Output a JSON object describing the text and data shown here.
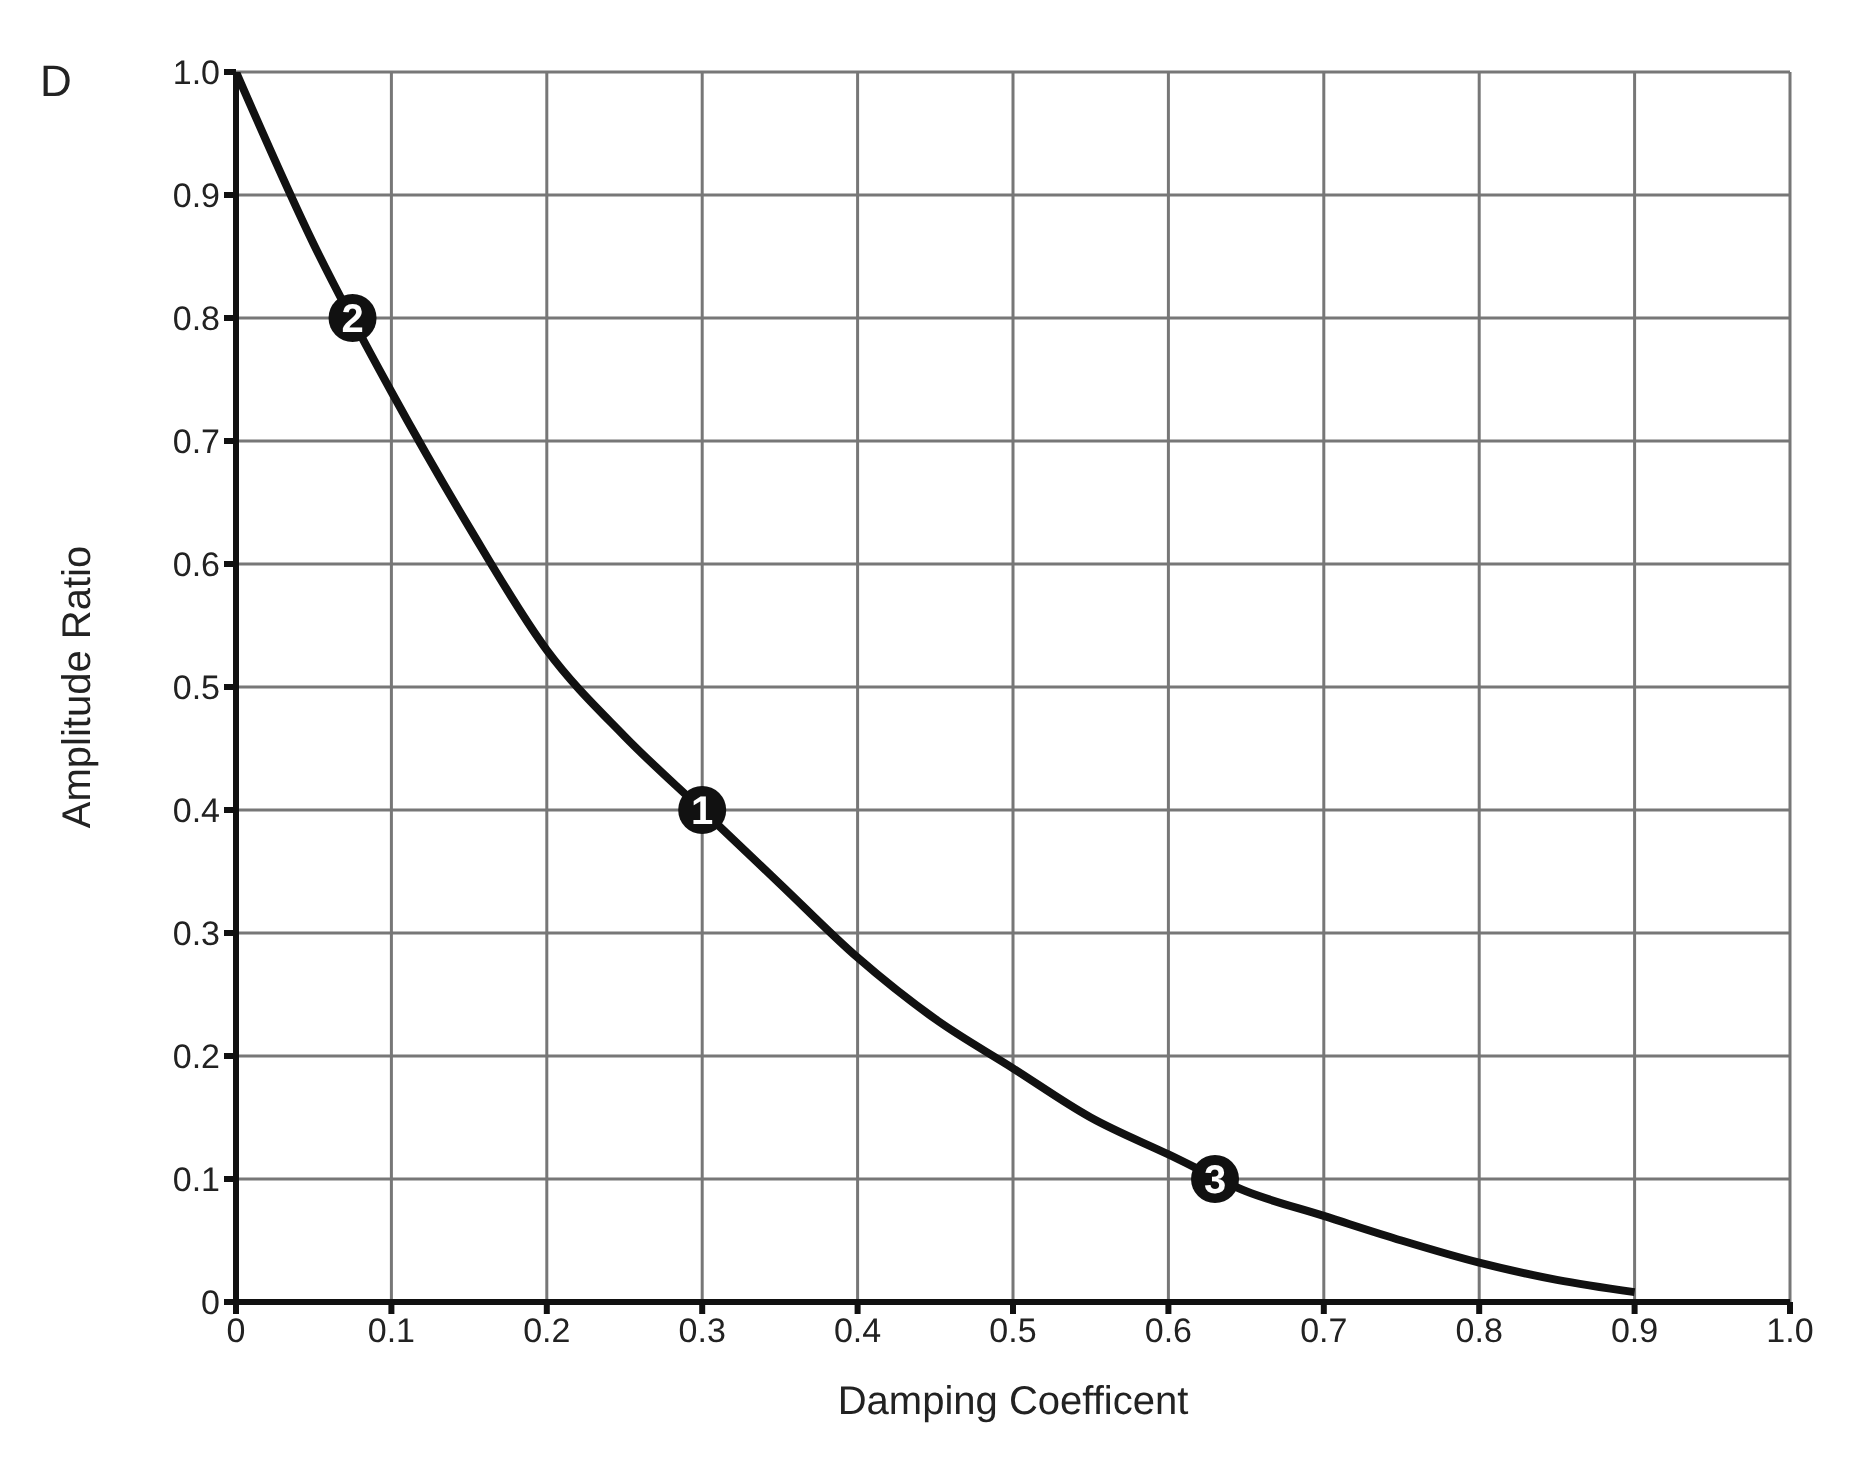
{
  "chart_data": {
    "type": "line",
    "xlabel": "Damping Coefficent",
    "ylabel": "Amplitude Ratio",
    "annotations": [
      "D",
      {
        "text": "2",
        "x": 0.075,
        "y": 0.8
      },
      {
        "text": "1",
        "x": 0.3,
        "y": 0.4
      },
      {
        "text": "3",
        "x": 0.63,
        "y": 0.1
      }
    ],
    "xlim": [
      0,
      1
    ],
    "xticks": [
      0,
      0.1,
      0.2,
      0.3,
      0.4,
      0.5,
      0.6,
      0.7,
      0.8,
      0.9,
      {
        "value": 1,
        "label": "1.0"
      }
    ],
    "ylim": [
      0,
      1
    ],
    "yticks": [
      0,
      0.1,
      0.2,
      0.3,
      0.4,
      0.5,
      0.6,
      0.7,
      0.8,
      0.9,
      {
        "value": 1,
        "label": "1.0"
      }
    ],
    "grid": true,
    "series": [
      {
        "color": "#111111",
        "marker": "none",
        "x": [
          0,
          0.05,
          0.1,
          0.15,
          0.2,
          0.25,
          0.3,
          0.35,
          0.4,
          0.45,
          0.5,
          0.55,
          0.6,
          0.65,
          0.7,
          0.75,
          0.8,
          0.85,
          0.9
        ],
        "values": [
          1,
          0.86,
          0.74,
          0.63,
          0.53,
          0.46,
          0.4,
          0.34,
          0.28,
          0.23,
          0.19,
          0.15,
          0.12,
          0.09,
          0.07,
          0.05,
          0.032,
          0.018,
          0.008
        ]
      },
      {
        "type": "scatter",
        "color": "#111111",
        "marker": "circle",
        "x": [
          0.075,
          0.3,
          0.63
        ],
        "values": [
          0.8,
          0.4,
          0.1
        ]
      }
    ]
  }
}
